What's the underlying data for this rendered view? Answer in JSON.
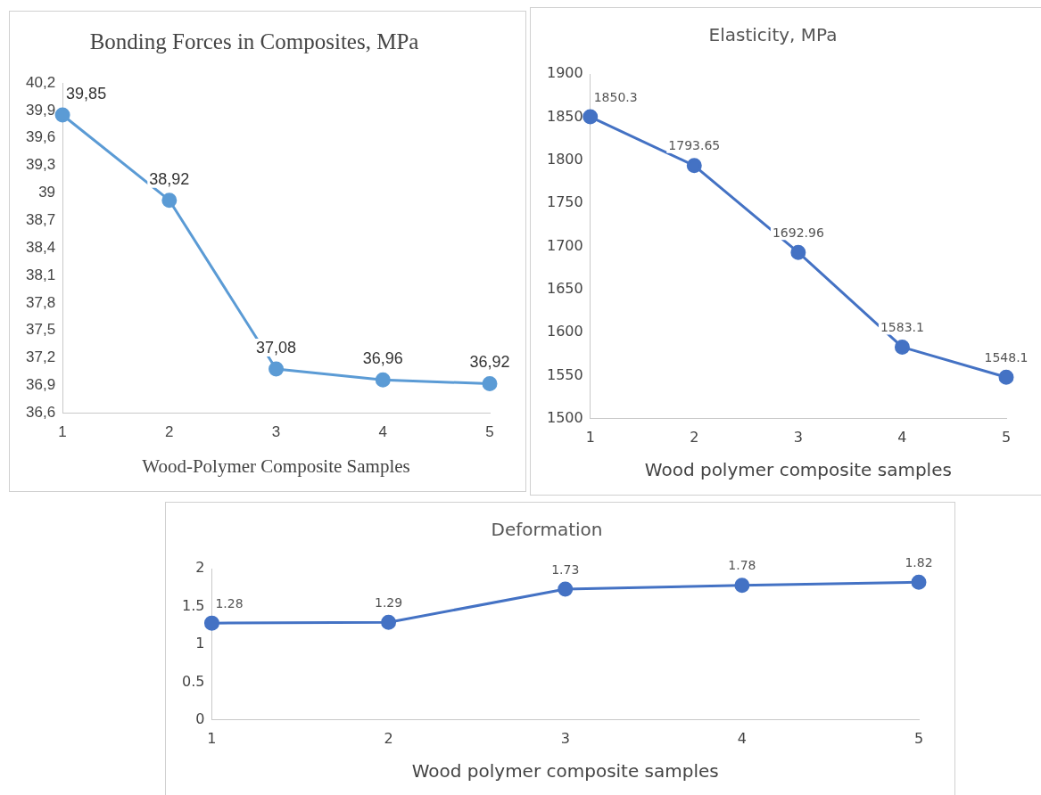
{
  "chart_data": [
    {
      "type": "line",
      "title": "Bonding Forces in Composites, MPa",
      "xlabel": "Wood-Polymer Composite Samples",
      "categories": [
        "1",
        "2",
        "3",
        "4",
        "5"
      ],
      "series": [
        {
          "color": "#5b9bd5",
          "values": [
            39.85,
            38.92,
            37.08,
            36.96,
            36.92
          ],
          "value_labels": [
            "39,85",
            "38,92",
            "37,08",
            "36,96",
            "36,92"
          ]
        }
      ],
      "ylim": [
        36.6,
        40.2
      ],
      "yticks": [
        {
          "value": 36.6,
          "label": "36,6"
        },
        {
          "value": 36.9,
          "label": "36,9"
        },
        {
          "value": 37.2,
          "label": "37,2"
        },
        {
          "value": 37.5,
          "label": "37,5"
        },
        {
          "value": 37.8,
          "label": "37,8"
        },
        {
          "value": 38.1,
          "label": "38,1"
        },
        {
          "value": 38.4,
          "label": "38,4"
        },
        {
          "value": 38.7,
          "label": "38,7"
        },
        39,
        {
          "value": 39.3,
          "label": "39,3"
        },
        {
          "value": 39.6,
          "label": "39,6"
        },
        {
          "value": 39.9,
          "label": "39,9"
        },
        {
          "value": 40.2,
          "label": "40,2"
        }
      ],
      "grid": false,
      "legend": false,
      "marker": "circle",
      "line_style": "solid"
    },
    {
      "type": "line",
      "title": "Elasticity, MPa",
      "xlabel": "Wood polymer composite samples",
      "categories": [
        "1",
        "2",
        "3",
        "4",
        "5"
      ],
      "series": [
        {
          "color": "#4472c4",
          "values": [
            1850.3,
            1793.65,
            1692.96,
            1583.1,
            1548.1
          ]
        }
      ],
      "ylim": [
        1500,
        1900
      ],
      "yticks": [
        1500,
        1550,
        1600,
        1650,
        1700,
        1750,
        1800,
        1850,
        1900
      ],
      "data_labels": true,
      "grid": false,
      "legend": false,
      "marker": "circle",
      "line_style": "solid"
    },
    {
      "type": "line",
      "title": "Deformation",
      "xlabel": "Wood polymer composite samples",
      "categories": [
        "1",
        "2",
        "3",
        "4",
        "5"
      ],
      "series": [
        {
          "color": "#4472c4",
          "values": [
            1.28,
            1.29,
            1.73,
            1.78,
            1.82
          ]
        }
      ],
      "ylim": [
        0,
        2
      ],
      "yticks": [
        0,
        0.5,
        1,
        1.5,
        2
      ],
      "data_labels": true,
      "grid": false,
      "legend": false,
      "marker": "circle",
      "line_style": "solid"
    }
  ]
}
